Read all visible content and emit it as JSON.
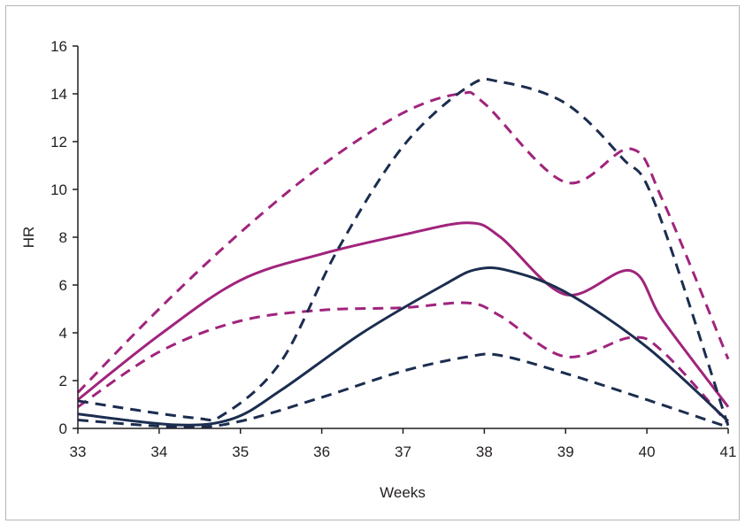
{
  "chart_data": {
    "type": "line",
    "xlabel": "Weeks",
    "ylabel": "HR",
    "xlim": [
      33,
      41
    ],
    "ylim": [
      0,
      16
    ],
    "x_ticks": [
      33,
      34,
      35,
      36,
      37,
      38,
      39,
      40,
      41
    ],
    "y_ticks": [
      0,
      2,
      4,
      6,
      8,
      10,
      12,
      14,
      16
    ],
    "grid": false,
    "legend": "none",
    "series": [
      {
        "color": "#a0247d",
        "style": "dashed",
        "x": [
          33,
          34,
          35,
          36,
          37,
          37.7,
          38,
          39,
          39.8,
          40.2,
          41
        ],
        "y": [
          1.5,
          5.0,
          8.2,
          11.0,
          13.2,
          14.0,
          13.6,
          10.3,
          11.7,
          9.5,
          2.9
        ]
      },
      {
        "color": "#a0247d",
        "style": "solid",
        "x": [
          33,
          34,
          35,
          36,
          37,
          37.8,
          38.2,
          39,
          39.8,
          40.2,
          41
        ],
        "y": [
          1.2,
          3.9,
          6.2,
          7.3,
          8.1,
          8.6,
          8.0,
          5.6,
          6.6,
          4.5,
          0.9
        ]
      },
      {
        "color": "#a0247d",
        "style": "dashed",
        "x": [
          33,
          34,
          35,
          36,
          37,
          37.8,
          38.2,
          39,
          39.8,
          40.2,
          41
        ],
        "y": [
          0.9,
          3.2,
          4.5,
          4.95,
          5.05,
          5.25,
          4.7,
          3.0,
          3.8,
          3.2,
          0.2
        ]
      },
      {
        "color": "#1b2d4f",
        "style": "dashed",
        "x": [
          33,
          34.4,
          34.8,
          35.5,
          36.2,
          37,
          37.8,
          38.2,
          39,
          39.7,
          40.1,
          41
        ],
        "y": [
          1.15,
          0.45,
          0.6,
          2.8,
          7.5,
          11.8,
          14.3,
          14.5,
          13.6,
          11.3,
          9.4,
          0.1
        ]
      },
      {
        "color": "#1b2d4f",
        "style": "solid",
        "x": [
          33,
          34.2,
          34.9,
          35.5,
          36.5,
          37.5,
          37.9,
          38.3,
          39,
          40,
          41
        ],
        "y": [
          0.6,
          0.15,
          0.4,
          1.6,
          4.0,
          6.0,
          6.65,
          6.6,
          5.7,
          3.4,
          0.3
        ]
      },
      {
        "color": "#1b2d4f",
        "style": "dashed",
        "x": [
          33,
          34.3,
          35,
          36,
          37,
          37.8,
          38.2,
          39,
          40,
          41
        ],
        "y": [
          0.35,
          0.05,
          0.3,
          1.3,
          2.4,
          3.0,
          3.05,
          2.3,
          1.2,
          0.05
        ]
      }
    ]
  }
}
